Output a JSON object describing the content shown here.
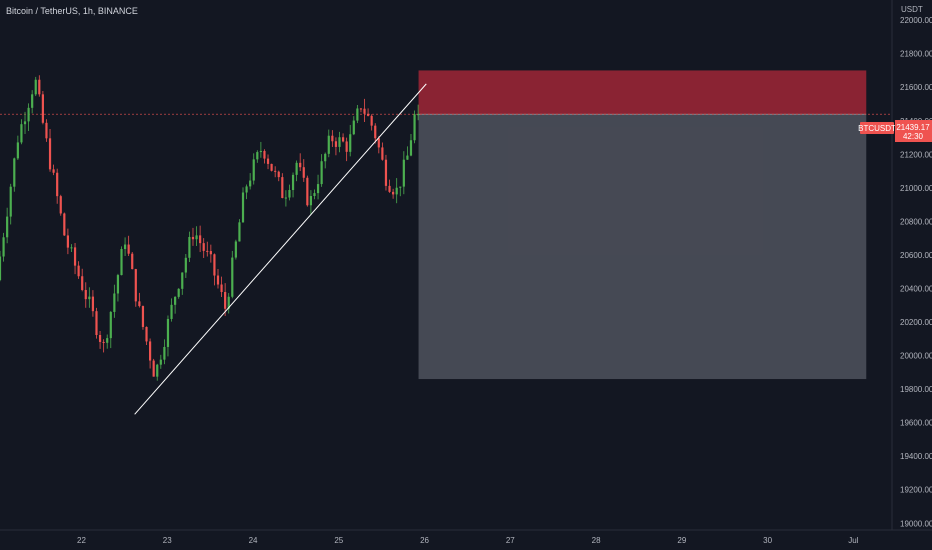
{
  "title": "Bitcoin / TetherUS, 1h, BINANCE",
  "chart_data": {
    "type": "candlestick",
    "symbol": "BTCUSDT",
    "price_axis_unit": "USDT",
    "last_price": "21439.17",
    "countdown": "42:30",
    "price_ticks": [
      "22000.00",
      "21800.00",
      "21600.00",
      "21400.00",
      "21200.00",
      "21000.00",
      "20800.00",
      "20600.00",
      "20400.00",
      "20200.00",
      "20000.00",
      "19800.00",
      "19600.00",
      "19400.00",
      "19200.00",
      "19000.00"
    ],
    "tick_values": [
      22000,
      21800,
      21600,
      21400,
      21200,
      21000,
      20800,
      20600,
      20400,
      20200,
      20000,
      19800,
      19600,
      19400,
      19200,
      19000
    ],
    "date_ticks": [
      "22",
      "23",
      "24",
      "25",
      "26",
      "27",
      "28",
      "29",
      "30",
      "Jul"
    ],
    "date_positions": [
      22,
      23,
      24,
      25,
      26,
      27,
      28,
      29,
      30,
      31
    ],
    "ylim": [
      18960,
      22120
    ],
    "xlim": [
      21.05,
      31.45
    ],
    "last_price_value": 21439.17,
    "colors": {
      "background": "#131722",
      "up": "#26a69a",
      "up_candle": "#4caf50",
      "down": "#ef5350",
      "line": "#ffffff",
      "stop_zone": "#c2293b",
      "target_zone": "#787b86"
    },
    "trendline": {
      "start": {
        "day": 22.62,
        "price": 19650
      },
      "end": {
        "day": 26.02,
        "price": 21620
      }
    },
    "position_box": {
      "start_day": 25.93,
      "end_day": 31.15,
      "entry": 21439,
      "stop": 21700,
      "target": 19860
    },
    "price_path": [
      {
        "day": 21.05,
        "price": 20450
      },
      {
        "day": 21.3,
        "price": 21300
      },
      {
        "day": 21.5,
        "price": 21650
      },
      {
        "day": 21.62,
        "price": 21300
      },
      {
        "day": 21.85,
        "price": 20700
      },
      {
        "day": 22.1,
        "price": 20350
      },
      {
        "day": 22.3,
        "price": 20050
      },
      {
        "day": 22.55,
        "price": 20700
      },
      {
        "day": 22.72,
        "price": 20250
      },
      {
        "day": 22.9,
        "price": 19880
      },
      {
        "day": 23.15,
        "price": 20400
      },
      {
        "day": 23.35,
        "price": 20750
      },
      {
        "day": 23.55,
        "price": 20550
      },
      {
        "day": 23.72,
        "price": 20280
      },
      {
        "day": 23.95,
        "price": 21000
      },
      {
        "day": 24.15,
        "price": 21250
      },
      {
        "day": 24.4,
        "price": 20950
      },
      {
        "day": 24.55,
        "price": 21150
      },
      {
        "day": 24.7,
        "price": 20900
      },
      {
        "day": 24.95,
        "price": 21300
      },
      {
        "day": 25.15,
        "price": 21250
      },
      {
        "day": 25.3,
        "price": 21500
      },
      {
        "day": 25.45,
        "price": 21350
      },
      {
        "day": 25.6,
        "price": 21050
      },
      {
        "day": 25.72,
        "price": 20980
      },
      {
        "day": 25.84,
        "price": 21180
      },
      {
        "day": 25.93,
        "price": 21439
      }
    ]
  }
}
